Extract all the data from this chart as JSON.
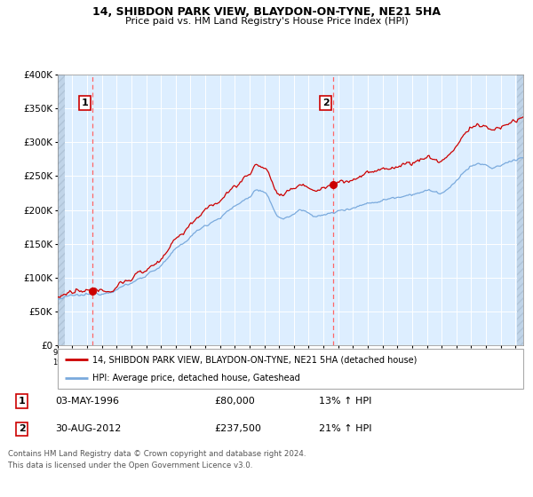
{
  "title1": "14, SHIBDON PARK VIEW, BLAYDON-ON-TYNE, NE21 5HA",
  "title2": "Price paid vs. HM Land Registry's House Price Index (HPI)",
  "red_label": "14, SHIBDON PARK VIEW, BLAYDON-ON-TYNE, NE21 5HA (detached house)",
  "blue_label": "HPI: Average price, detached house, Gateshead",
  "annotation1_label": "1",
  "annotation1_date": "03-MAY-1996",
  "annotation1_price": "£80,000",
  "annotation1_hpi": "13% ↑ HPI",
  "annotation2_label": "2",
  "annotation2_date": "30-AUG-2012",
  "annotation2_price": "£237,500",
  "annotation2_hpi": "21% ↑ HPI",
  "copyright": "Contains HM Land Registry data © Crown copyright and database right 2024.",
  "licence": "This data is licensed under the Open Government Licence v3.0.",
  "red_color": "#cc0000",
  "blue_color": "#7aaadd",
  "dot_color": "#cc0000",
  "vline_color": "#ff6666",
  "bg_color": "#ddeeff",
  "grid_color": "#ffffff",
  "hatch_color": "#c0d4e8",
  "ylim_max": 400000,
  "ylim_min": 0,
  "sale1_year": 1996.34,
  "sale1_price": 80000,
  "sale2_year": 2012.66,
  "sale2_price": 237500,
  "start_year": 1994.0,
  "end_year": 2025.5
}
